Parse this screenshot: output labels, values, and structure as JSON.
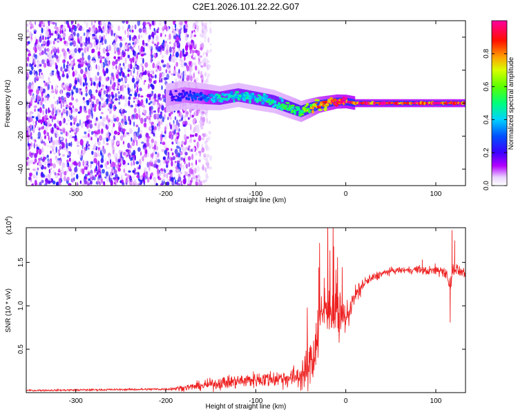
{
  "title": "C2E1.2026.101.22.22.G07",
  "chart_data": [
    {
      "type": "heatmap",
      "name": "spectrogram",
      "xlabel": "Height of straight line (km)",
      "ylabel": "Frequency (Hz)",
      "xlim": [
        -355,
        133
      ],
      "ylim": [
        -50,
        50
      ],
      "xticks": [
        -300,
        -200,
        -100,
        0,
        100
      ],
      "xtick_labels": [
        "-300",
        "-200",
        "-100",
        "0",
        "100"
      ],
      "yticks": [
        -40,
        -20,
        0,
        20,
        40
      ],
      "ytick_labels": [
        "-40",
        "-20",
        "0",
        "20",
        "40"
      ],
      "colorbar": {
        "label": "Normalized spectral amplitude",
        "range": [
          0,
          1
        ],
        "ticks": [
          0.0,
          0.2,
          0.4,
          0.6,
          0.8
        ],
        "tick_labels": [
          "0.0",
          "0.2",
          "0.4",
          "0.6",
          "0.8"
        ],
        "colormap": [
          "#ffffff",
          "#b400ff",
          "#3c00ff",
          "#0000ff",
          "#00d2ff",
          "#00ff7a",
          "#5aff00",
          "#ffff00",
          "#ff9000",
          "#ff0000",
          "#ff00a0"
        ]
      },
      "noise_region": {
        "x_from": -355,
        "x_to": -160,
        "freq_from": -50,
        "freq_to": 50
      },
      "signal_track": {
        "x": [
          -200,
          -180,
          -160,
          -140,
          -120,
          -100,
          -80,
          -60,
          -50,
          -40,
          -30,
          -20,
          -10,
          0,
          10,
          40,
          80,
          100,
          120,
          133
        ],
        "freq": [
          3,
          5,
          4,
          3,
          5,
          3,
          1,
          -3,
          -5,
          -3,
          -1,
          0,
          1,
          1,
          0,
          0,
          0,
          0,
          0,
          0
        ],
        "amplitude": [
          0.2,
          0.25,
          0.3,
          0.45,
          0.45,
          0.45,
          0.5,
          0.55,
          0.6,
          0.7,
          0.85,
          0.9,
          0.95,
          0.98,
          0.98,
          0.98,
          0.97,
          0.95,
          0.98,
          0.95
        ]
      }
    },
    {
      "type": "line",
      "name": "snr",
      "xlabel": "Height of straight line (km)",
      "ylabel": "SNR (10 * v/v)",
      "y_multiplier_label": "(x10",
      "y_multiplier_exponent": "4",
      "y_multiplier_close": ")",
      "xlim": [
        -355,
        133
      ],
      "ylim": [
        0,
        19000
      ],
      "xticks": [
        -300,
        -200,
        -100,
        0,
        100
      ],
      "xtick_labels": [
        "-300",
        "-200",
        "-100",
        "0",
        "100"
      ],
      "yticks": [
        5000,
        10000,
        15000
      ],
      "ytick_labels": [
        "0.5",
        "1.0",
        "1.5"
      ],
      "color": "#ee2222",
      "x": [
        -355,
        -300,
        -250,
        -200,
        -180,
        -160,
        -140,
        -120,
        -100,
        -80,
        -60,
        -50,
        -40,
        -35,
        -30,
        -25,
        -20,
        -15,
        -10,
        0,
        5,
        10,
        20,
        30,
        40,
        50,
        60,
        70,
        80,
        90,
        100,
        110,
        115,
        118,
        120,
        125,
        133
      ],
      "y": [
        250,
        300,
        350,
        400,
        550,
        800,
        1100,
        1300,
        1500,
        1600,
        1700,
        2000,
        2800,
        5000,
        8000,
        9500,
        10200,
        9000,
        8200,
        8600,
        9800,
        11000,
        12600,
        13200,
        13700,
        14000,
        14100,
        14100,
        14200,
        14000,
        14100,
        14000,
        12500,
        13500,
        14500,
        14000,
        13800
      ],
      "noise": [
        120,
        150,
        150,
        200,
        400,
        650,
        900,
        1000,
        1100,
        1200,
        1400,
        2200,
        3500,
        4500,
        4500,
        4200,
        3500,
        3500,
        3200,
        2200,
        1800,
        1600,
        900,
        700,
        500,
        450,
        450,
        450,
        550,
        650,
        750,
        900,
        1800,
        1500,
        1200,
        700,
        600
      ],
      "spikes": [
        {
          "x": -30,
          "y": 14400
        },
        {
          "x": -24,
          "y": 13200
        },
        {
          "x": 85,
          "y": 15300
        },
        {
          "x": 118,
          "y": 18700
        },
        {
          "x": 116,
          "y": 8100
        },
        {
          "x": 121,
          "y": 17500
        }
      ]
    }
  ]
}
